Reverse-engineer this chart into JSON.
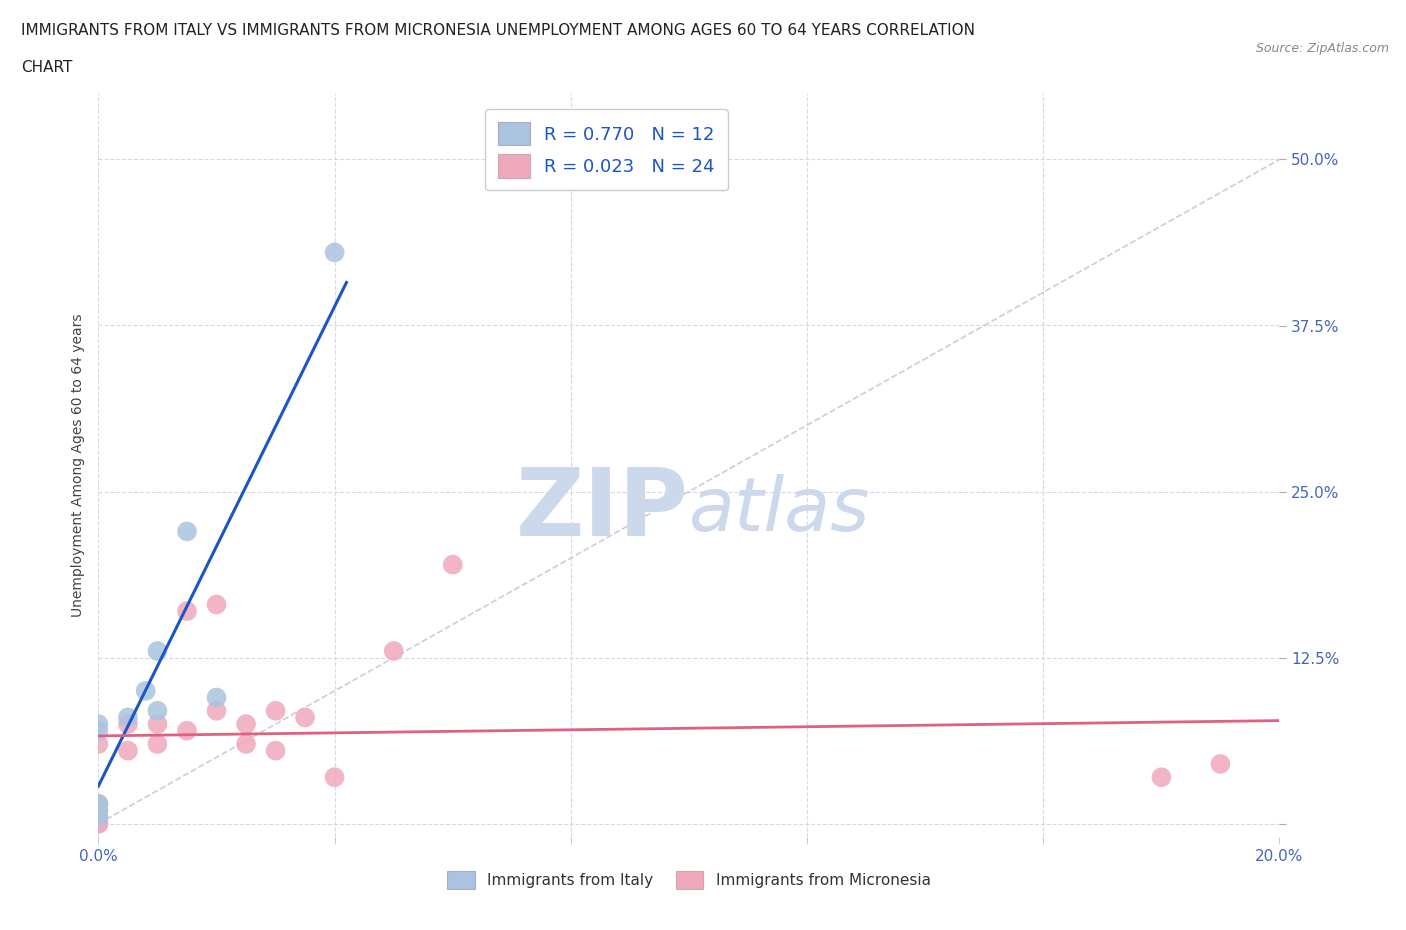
{
  "title_line1": "IMMIGRANTS FROM ITALY VS IMMIGRANTS FROM MICRONESIA UNEMPLOYMENT AMONG AGES 60 TO 64 YEARS CORRELATION",
  "title_line2": "CHART",
  "source_text": "Source: ZipAtlas.com",
  "ylabel": "Unemployment Among Ages 60 to 64 years",
  "xlim": [
    0.0,
    0.2
  ],
  "ylim": [
    -0.01,
    0.55
  ],
  "xticks": [
    0.0,
    0.04,
    0.08,
    0.12,
    0.16,
    0.2
  ],
  "xticklabels": [
    "0.0%",
    "",
    "",
    "",
    "",
    "20.0%"
  ],
  "yticks": [
    0.0,
    0.125,
    0.25,
    0.375,
    0.5
  ],
  "yticklabels": [
    "",
    "12.5%",
    "25.0%",
    "37.5%",
    "50.0%"
  ],
  "italy_color": "#aac4e0",
  "micronesia_color": "#f0a8bc",
  "italy_line_color": "#1a56c4",
  "micronesia_line_color": "#e06080",
  "diagonal_line_color": "#b8b8c8",
  "legend_italy_R": "0.770",
  "legend_italy_N": "12",
  "legend_micronesia_R": "0.023",
  "legend_micronesia_N": "24",
  "legend_text_color": "#1a56c4",
  "watermark_color": "#ccd8ec",
  "grid_color": "#d8d8e8",
  "background_color": "#ffffff",
  "italy_x": [
    0.0,
    0.0,
    0.0,
    0.0,
    0.0,
    0.005,
    0.008,
    0.01,
    0.01,
    0.015,
    0.02,
    0.04
  ],
  "italy_y": [
    0.005,
    0.01,
    0.015,
    0.07,
    0.075,
    0.08,
    0.1,
    0.085,
    0.13,
    0.22,
    0.095,
    0.43
  ],
  "micronesia_x": [
    0.0,
    0.0,
    0.0,
    0.0,
    0.0,
    0.0,
    0.005,
    0.005,
    0.01,
    0.01,
    0.015,
    0.015,
    0.02,
    0.02,
    0.025,
    0.025,
    0.03,
    0.03,
    0.035,
    0.04,
    0.05,
    0.06,
    0.18,
    0.19
  ],
  "micronesia_y": [
    0.0,
    0.0,
    0.005,
    0.01,
    0.015,
    0.06,
    0.055,
    0.075,
    0.06,
    0.075,
    0.07,
    0.16,
    0.085,
    0.165,
    0.06,
    0.075,
    0.055,
    0.085,
    0.08,
    0.035,
    0.13,
    0.195,
    0.035,
    0.045
  ]
}
